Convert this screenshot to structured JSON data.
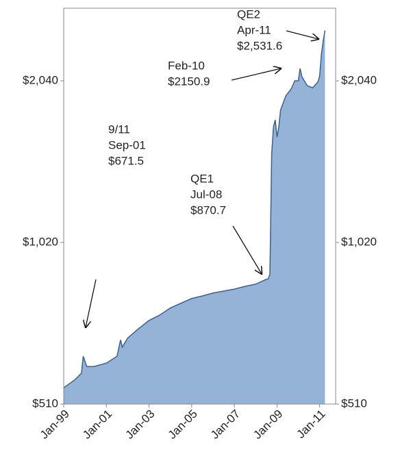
{
  "chart_data": {
    "type": "area",
    "x": [
      "Jan-99",
      "Jul-99",
      "Nov-99",
      "Dec-99",
      "Feb-00",
      "Jun-00",
      "Jan-01",
      "Jul-01",
      "Sep-01",
      "Oct-01",
      "Jan-02",
      "Jul-02",
      "Jan-03",
      "Jul-03",
      "Jan-04",
      "Jul-04",
      "Jan-05",
      "Jul-05",
      "Jan-06",
      "Jul-06",
      "Jan-07",
      "Jul-07",
      "Jan-08",
      "Jul-08",
      "Aug-08",
      "Sep-08",
      "Oct-08",
      "Nov-08",
      "Dec-08",
      "Jan-09",
      "Feb-09",
      "Mar-09",
      "Jun-09",
      "Sep-09",
      "Nov-09",
      "Jan-10",
      "Feb-10",
      "Mar-10",
      "Jun-10",
      "Sep-10",
      "Dec-10",
      "Jan-11",
      "Feb-11",
      "Mar-11",
      "Apr-11"
    ],
    "values": [
      547,
      565,
      582,
      626,
      599,
      599,
      608,
      626,
      671.5,
      651,
      677,
      704,
      730,
      747,
      770,
      786,
      802,
      811,
      821,
      828,
      835,
      845,
      853,
      870.7,
      872,
      890,
      1490,
      1675,
      1725,
      1603,
      1675,
      1800,
      1914,
      1970,
      2040,
      2040,
      2150.9,
      2076,
      1998,
      1980,
      2030,
      2083,
      2286,
      2418,
      2531.6
    ],
    "color": "#95b3d7",
    "line_color": "#3b5f8f",
    "xlim": [
      "Jan-99",
      "Oct-11"
    ],
    "xticks": [
      "Jan-99",
      "Jan-01",
      "Jan-03",
      "Jan-05",
      "Jan-07",
      "Jan-09",
      "Jan-11"
    ],
    "log_scale": true,
    "ylim": [
      510,
      2785
    ],
    "yticks": [
      {
        "value": 510,
        "label": "$510"
      },
      {
        "value": 1020,
        "label": "$1,020"
      },
      {
        "value": 2040,
        "label": "$2,040"
      }
    ],
    "y2lim": [
      510,
      2785
    ],
    "y2ticks": [
      {
        "value": 510,
        "label": "$510"
      },
      {
        "value": 1020,
        "label": "$1,020"
      },
      {
        "value": 2040,
        "label": "$2,040"
      }
    ],
    "annotations": [
      [
        "9/11",
        "Sep-01",
        "$671.5"
      ],
      [
        "QE1",
        "Jul-08",
        "$870.7"
      ],
      [
        "Feb-10",
        "$2150.9"
      ],
      [
        "QE2",
        "Apr-11",
        "$2,531.6"
      ]
    ]
  }
}
